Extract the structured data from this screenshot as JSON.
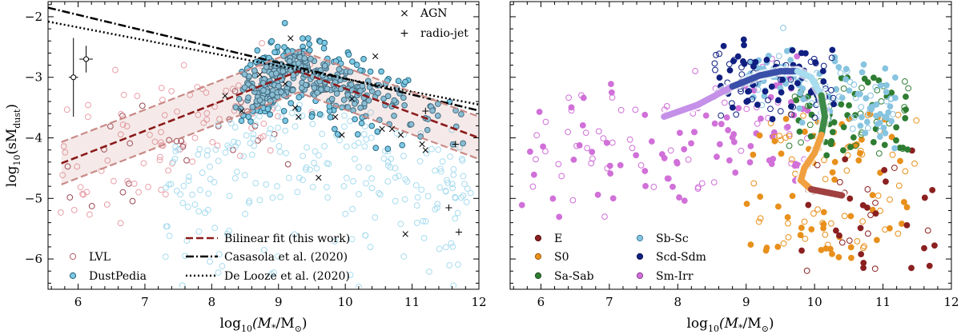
{
  "chart_data": [
    {
      "type": "scatter",
      "panel": "left",
      "xlabel_parts": {
        "a": "log",
        "b": "10",
        "c": "(M",
        "d": "*",
        "e": "/M",
        "f": "⊙",
        "g": ")"
      },
      "ylabel_parts": {
        "a": "log",
        "b": "10",
        "c": "(sM",
        "d": "dust",
        "e": ")"
      },
      "xlim": [
        5.55,
        12.0
      ],
      "ylim": [
        -6.5,
        -1.75
      ],
      "xticks": [
        "6",
        "7",
        "8",
        "9",
        "10",
        "11",
        "12"
      ],
      "yticks": [
        "-2",
        "-3",
        "-4",
        "-5",
        "-6"
      ],
      "legend_markers": [
        "AGN",
        "radio-jet"
      ],
      "legend_samples": [
        "LVL",
        "DustPedia"
      ],
      "legend_lines": [
        "Bilinear fit (this work)",
        "Casasola et al. (2020)",
        "De Looze et al. (2020)"
      ],
      "colors": {
        "LVL": "#e8a0a8",
        "LVL_dark": "#8b3a44",
        "DustPedia_fill": "#7ec8e3",
        "DustPedia_edge": "#1f5f7a",
        "DustPedia_light": "#a8dcef",
        "fit": "#8b1a1a",
        "fit_band": "#c98a86"
      },
      "lines": {
        "bilinear_fit": {
          "x": [
            5.75,
            9.3,
            12.0
          ],
          "y": [
            -4.42,
            -2.9,
            -4.0
          ]
        },
        "bilinear_upper": {
          "x": [
            5.75,
            9.3,
            12.0
          ],
          "y": [
            -4.07,
            -2.55,
            -3.65
          ]
        },
        "bilinear_lower": {
          "x": [
            5.75,
            9.3,
            12.0
          ],
          "y": [
            -4.77,
            -3.25,
            -4.35
          ]
        },
        "casasola_2020": {
          "x": [
            5.55,
            12.0
          ],
          "y": [
            -1.85,
            -3.55
          ]
        },
        "delooze_2020": {
          "x": [
            5.55,
            12.0
          ],
          "y": [
            -2.08,
            -3.45
          ]
        }
      },
      "error_bars": [
        {
          "x": 5.93,
          "y": -3.0,
          "xerr": 0.07,
          "yerr": 0.65
        },
        {
          "x": 6.12,
          "y": -2.7,
          "xerr": 0.1,
          "yerr": 0.22
        }
      ],
      "agn_points": {
        "x": [
          9.18,
          8.72,
          8.2,
          8.45,
          9.1,
          9.3,
          9.85,
          10.1,
          10.45,
          10.55,
          10.7,
          10.83,
          11.15,
          11.2,
          9.6,
          9.25,
          10.9,
          9.95
        ],
        "y": [
          -2.35,
          -2.95,
          -3.3,
          -3.55,
          -3.1,
          -3.65,
          -3.65,
          -3.35,
          -2.65,
          -3.85,
          -3.85,
          -3.95,
          -4.1,
          -4.2,
          -4.65,
          -3.5,
          -5.58,
          -3.95
        ]
      },
      "radio_jet_points": {
        "x": [
          11.2,
          11.55,
          11.7,
          11.65
        ],
        "y": [
          -3.55,
          -5.15,
          -5.55,
          -4.1
        ]
      }
    },
    {
      "type": "scatter",
      "panel": "right",
      "xlabel_parts": {
        "a": "log",
        "b": "10",
        "c": "(M",
        "d": "*",
        "e": "/M",
        "f": "⊙",
        "g": ")"
      },
      "xlim": [
        5.55,
        12.0
      ],
      "ylim": [
        -6.5,
        -1.75
      ],
      "xticks": [
        "6",
        "7",
        "8",
        "9",
        "10",
        "11",
        "12"
      ],
      "legend_types": [
        "E",
        "S0",
        "Sa-Sab",
        "Sb-Sc",
        "Scd-Sdm",
        "Sm-Irr"
      ],
      "colors": {
        "E": "#8b2020",
        "S0": "#e8901c",
        "Sa-Sab": "#2e7d32",
        "Sb-Sc": "#87c4e0",
        "Scd-Sdm": "#101f80",
        "Sm-Irr": "#d070d8"
      },
      "track": {
        "x": [
          7.8,
          8.3,
          8.8,
          9.2,
          9.5,
          9.75,
          9.95,
          10.1,
          10.15,
          10.1,
          10.0,
          9.85,
          9.8,
          9.95,
          10.4
        ],
        "y": [
          -3.65,
          -3.45,
          -3.15,
          -2.97,
          -2.9,
          -2.9,
          -3.0,
          -3.3,
          -3.65,
          -3.95,
          -4.25,
          -4.5,
          -4.7,
          -4.85,
          -4.95
        ],
        "segment_colors": [
          "#c490e8",
          "#c490e8",
          "#3a4fa8",
          "#3a4fa8",
          "#3a4fa8",
          "#a8dcef",
          "#a8dcef",
          "#3c8a48",
          "#3c8a48",
          "#f0a040",
          "#f0a040",
          "#f0a040",
          "#f0a040",
          "#a04040"
        ]
      }
    }
  ]
}
